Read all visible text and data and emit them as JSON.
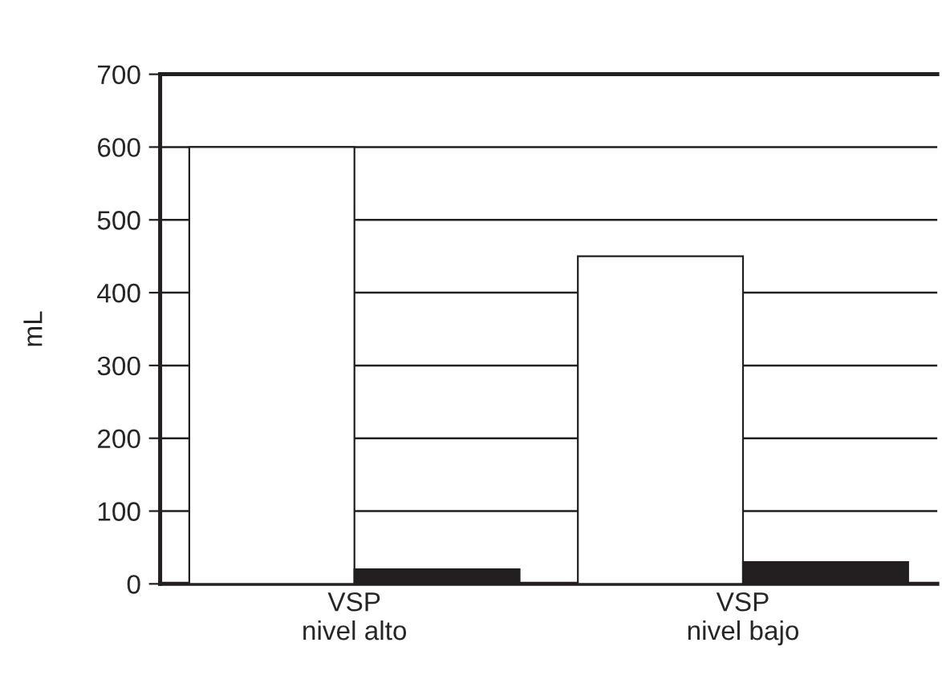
{
  "chart_data": {
    "type": "bar",
    "ylabel": "mL",
    "categories": [
      "VSP\nnivel alto",
      "VSP\nnivel bajo"
    ],
    "series": [
      {
        "color": "#ffffff",
        "values": [
          600,
          450
        ]
      },
      {
        "color": "#231f20",
        "values": [
          20,
          30
        ]
      }
    ],
    "ylim": [
      0,
      700
    ],
    "yticks": [
      0,
      100,
      200,
      300,
      400,
      500,
      600,
      700
    ],
    "grid": "y",
    "legend": false
  }
}
